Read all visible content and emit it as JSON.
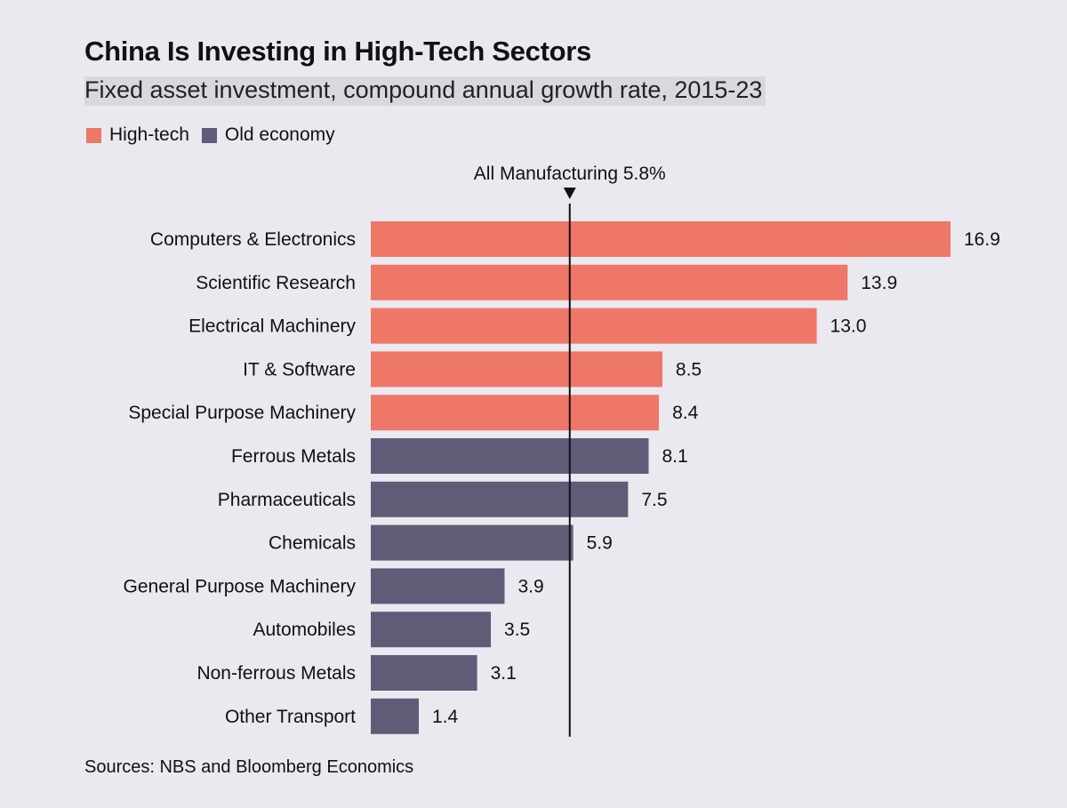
{
  "header": {
    "title": "China Is Investing in High-Tech Sectors",
    "subtitle": "Fixed asset investment, compound annual growth rate, 2015-23"
  },
  "legend": {
    "items": [
      {
        "label": "High-tech",
        "color": "#ee7767"
      },
      {
        "label": "Old economy",
        "color": "#605c78"
      }
    ]
  },
  "reference": {
    "label": "All Manufacturing 5.8%",
    "value": 5.8
  },
  "footer": {
    "source": "Sources: NBS and Bloomberg Economics"
  },
  "chart_data": {
    "type": "bar",
    "orientation": "horizontal",
    "title": "China Is Investing in High-Tech Sectors",
    "subtitle": "Fixed asset investment, compound annual growth rate, 2015-23",
    "xlim": [
      0,
      16.9
    ],
    "grid": false,
    "legend_position": "top-left",
    "categories": [
      "Computers & Electronics",
      "Scientific Research",
      "Electrical Machinery",
      "IT & Software",
      "Special Purpose Machinery",
      "Ferrous Metals",
      "Pharmaceuticals",
      "Chemicals",
      "General Purpose Machinery",
      "Automobiles",
      "Non-ferrous Metals",
      "Other Transport"
    ],
    "values": [
      16.9,
      13.9,
      13.0,
      8.5,
      8.4,
      8.1,
      7.5,
      5.9,
      3.9,
      3.5,
      3.1,
      1.4
    ],
    "value_labels": [
      "16.9",
      "13.9",
      "13.0",
      "8.5",
      "8.4",
      "8.1",
      "7.5",
      "5.9",
      "3.9",
      "3.5",
      "3.1",
      "1.4"
    ],
    "groups": [
      "High-tech",
      "High-tech",
      "High-tech",
      "High-tech",
      "High-tech",
      "Old economy",
      "Old economy",
      "Old economy",
      "Old economy",
      "Old economy",
      "Old economy",
      "Old economy"
    ],
    "colors": {
      "High-tech": "#ee7767",
      "Old economy": "#605c78"
    },
    "reference_line": {
      "label": "All Manufacturing 5.8%",
      "value": 5.8
    }
  }
}
